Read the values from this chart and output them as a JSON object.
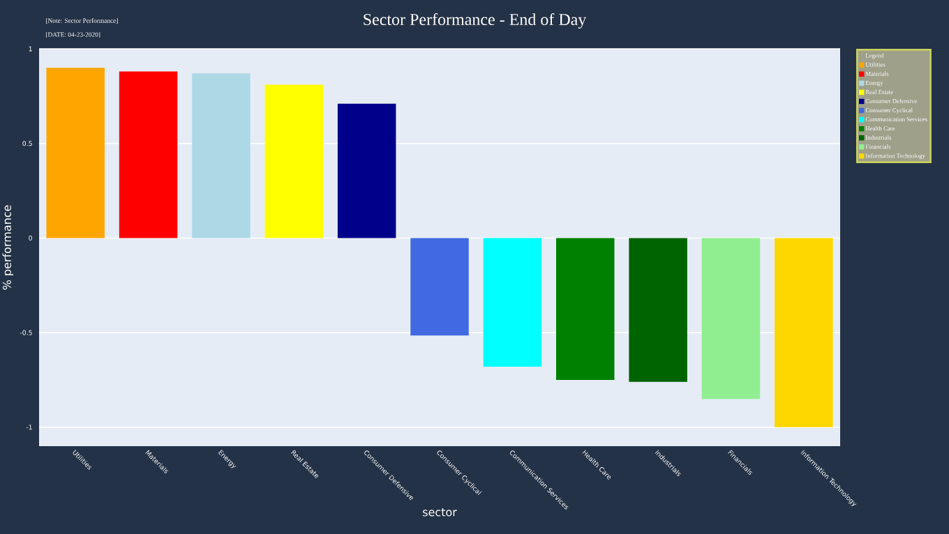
{
  "chart_data": {
    "type": "bar",
    "title": "Sector Performance - End of Day",
    "annotations": [
      "[Note: Sector Performance]",
      "[DATE: 04-23-2020]"
    ],
    "xlabel": "sector",
    "ylabel": "% performance",
    "legend_title": "Legend",
    "categories": [
      "Utilities",
      "Materials",
      "Energy",
      "Real Estate",
      "Consumer Defensive",
      "Consumer Cyclical",
      "Communication Services",
      "Health Care",
      "Industrials",
      "Financials",
      "Information Technology"
    ],
    "series": [
      {
        "name": "Utilities",
        "color": "#ffa500",
        "values": [
          0.9,
          null,
          null,
          null,
          null,
          null,
          null,
          null,
          null,
          null,
          null
        ]
      },
      {
        "name": "Materials",
        "color": "#ff0000",
        "values": [
          null,
          0.88,
          null,
          null,
          null,
          null,
          null,
          null,
          null,
          null,
          null
        ]
      },
      {
        "name": "Energy",
        "color": "#add8e6",
        "values": [
          null,
          null,
          0.87,
          null,
          null,
          null,
          null,
          null,
          null,
          null,
          null
        ]
      },
      {
        "name": "Real Estate",
        "color": "#ffff00",
        "values": [
          null,
          null,
          null,
          0.81,
          null,
          null,
          null,
          null,
          null,
          null,
          null
        ]
      },
      {
        "name": "Consumer Defensive",
        "color": "#00008b",
        "values": [
          null,
          null,
          null,
          null,
          0.71,
          null,
          null,
          null,
          null,
          null,
          null
        ]
      },
      {
        "name": "Consumer Cyclical",
        "color": "#4169e1",
        "values": [
          null,
          null,
          null,
          null,
          null,
          -0.515,
          null,
          null,
          null,
          null,
          null
        ]
      },
      {
        "name": "Communication Services",
        "color": "#00ffff",
        "values": [
          null,
          null,
          null,
          null,
          null,
          null,
          -0.68,
          null,
          null,
          null,
          null
        ]
      },
      {
        "name": "Health Care",
        "color": "#008000",
        "values": [
          null,
          null,
          null,
          null,
          null,
          null,
          null,
          -0.75,
          null,
          null,
          null
        ]
      },
      {
        "name": "Industrials",
        "color": "#006400",
        "values": [
          null,
          null,
          null,
          null,
          null,
          null,
          null,
          null,
          -0.76,
          null,
          null
        ]
      },
      {
        "name": "Financials",
        "color": "#90ee90",
        "values": [
          null,
          null,
          null,
          null,
          null,
          null,
          null,
          null,
          null,
          -0.85,
          null
        ]
      },
      {
        "name": "Information Technology",
        "color": "#ffd700",
        "values": [
          null,
          null,
          null,
          null,
          null,
          null,
          null,
          null,
          null,
          null,
          -1.0
        ]
      }
    ],
    "ylim": [
      -1.1,
      1
    ],
    "yticks": [
      -1,
      -0.5,
      0,
      0.5,
      1
    ],
    "grid": "y",
    "legend": "top right"
  }
}
